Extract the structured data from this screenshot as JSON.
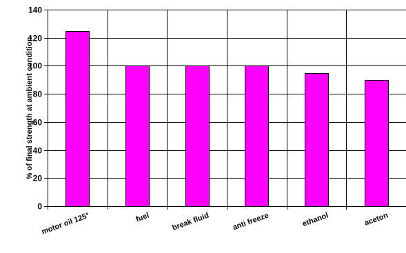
{
  "chart_data": {
    "type": "bar",
    "title": "",
    "xlabel": "",
    "ylabel": "% of final strength at ambient condition",
    "categories": [
      "motor oil 125°",
      "fuel",
      "break fluid",
      "anti freeze",
      "ethanol",
      "aceton"
    ],
    "values": [
      125,
      100,
      100,
      100,
      95,
      90
    ],
    "ylim": [
      0,
      140
    ],
    "yticks": [
      0,
      20,
      40,
      60,
      80,
      100,
      120,
      140
    ],
    "grid": "horizontal and vertical",
    "bar_color": "#FF00FF",
    "legend": "none"
  }
}
